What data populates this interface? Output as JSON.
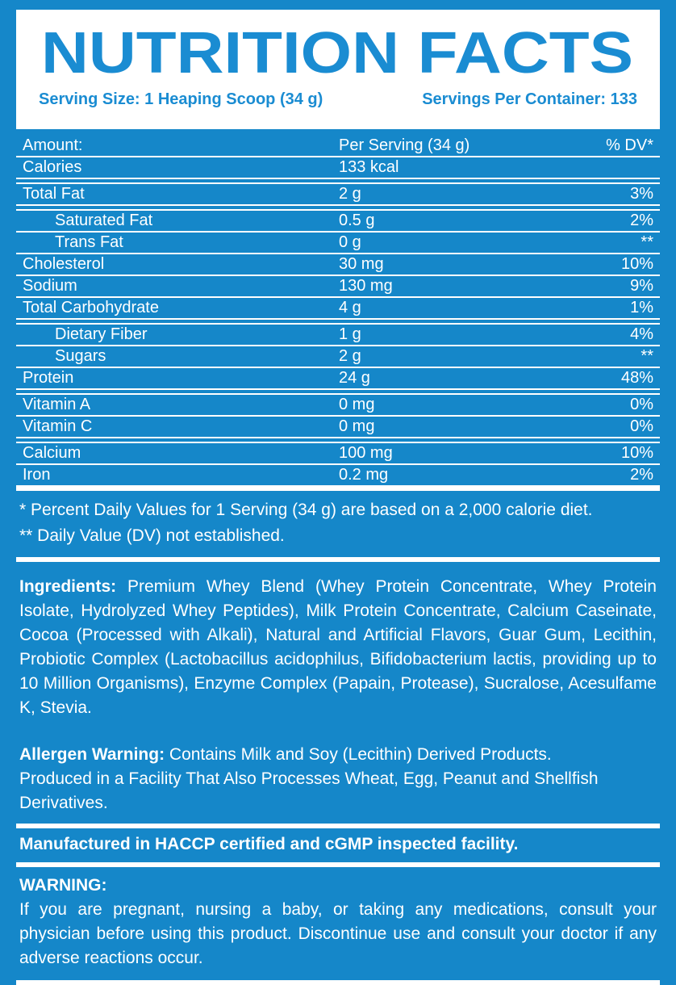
{
  "title": "NUTRITION FACTS",
  "colors": {
    "brand_blue": "#1587c9",
    "title_blue": "#1a8cd2",
    "white": "#ffffff"
  },
  "header": {
    "serving_size": "Serving Size: 1 Heaping Scoop (34 g)",
    "servings_per_container": "Servings Per Container: 133"
  },
  "nutrition_table": {
    "columns": {
      "amount": "Amount:",
      "per_serving": "Per Serving (34 g)",
      "dv": "% DV*"
    },
    "rows": [
      {
        "label": "Calories",
        "amount": "133 kcal",
        "dv": "",
        "indent": false,
        "sep": "double"
      },
      {
        "label": "Total Fat",
        "amount": "2 g",
        "dv": "3%",
        "indent": false,
        "sep": "double"
      },
      {
        "label": "Saturated Fat",
        "amount": "0.5 g",
        "dv": "2%",
        "indent": true,
        "sep": "single"
      },
      {
        "label": "Trans Fat",
        "amount": "0 g",
        "dv": "**",
        "indent": true,
        "sep": "single"
      },
      {
        "label": "Cholesterol",
        "amount": "30 mg",
        "dv": "10%",
        "indent": false,
        "sep": "single"
      },
      {
        "label": "Sodium",
        "amount": "130 mg",
        "dv": "9%",
        "indent": false,
        "sep": "single"
      },
      {
        "label": "Total Carbohydrate",
        "amount": "4 g",
        "dv": "1%",
        "indent": false,
        "sep": "double"
      },
      {
        "label": "Dietary Fiber",
        "amount": "1 g",
        "dv": "4%",
        "indent": true,
        "sep": "single"
      },
      {
        "label": "Sugars",
        "amount": "2 g",
        "dv": "**",
        "indent": true,
        "sep": "single"
      },
      {
        "label": "Protein",
        "amount": "24 g",
        "dv": "48%",
        "indent": false,
        "sep": "double"
      },
      {
        "label": "Vitamin A",
        "amount": "0 mg",
        "dv": "0%",
        "indent": false,
        "sep": "single"
      },
      {
        "label": "Vitamin C",
        "amount": "0 mg",
        "dv": "0%",
        "indent": false,
        "sep": "double"
      },
      {
        "label": "Calcium",
        "amount": "100 mg",
        "dv": "10%",
        "indent": false,
        "sep": "single"
      },
      {
        "label": "Iron",
        "amount": "0.2 mg",
        "dv": "2%",
        "indent": false,
        "sep": "thick"
      }
    ]
  },
  "footnotes": {
    "line1": "* Percent Daily Values for 1 Serving (34 g) are based on a 2,000 calorie diet.",
    "line2": "** Daily Value (DV) not established."
  },
  "ingredients": {
    "label": "Ingredients:",
    "text": " Premium Whey Blend (Whey Protein Concentrate, Whey Protein Isolate, Hydrolyzed Whey Peptides), Milk Protein Concentrate, Calcium Caseinate, Cocoa (Processed with Alkali), Natural and Artificial Flavors, Guar Gum, Lecithin, Probiotic Complex (Lactobacillus acidophilus, Bifidobacterium lactis, providing up to 10 Million Organisms), Enzyme Complex (Papain, Protease), Sucralose, Acesulfame K, Stevia."
  },
  "allergen": {
    "label": "Allergen Warning:",
    "line1": " Contains Milk and Soy (Lecithin) Derived Products.",
    "line2": "Produced in a Facility That Also Processes Wheat, Egg, Peanut and Shellfish Derivatives."
  },
  "manufactured": "Manufactured in HACCP certified and cGMP inspected facility.",
  "warning": {
    "label": "WARNING:",
    "text": "If you are pregnant, nursing a baby, or taking any medications, consult your physician before using this product. Discontinue use and consult your doctor if any adverse reactions occur."
  }
}
